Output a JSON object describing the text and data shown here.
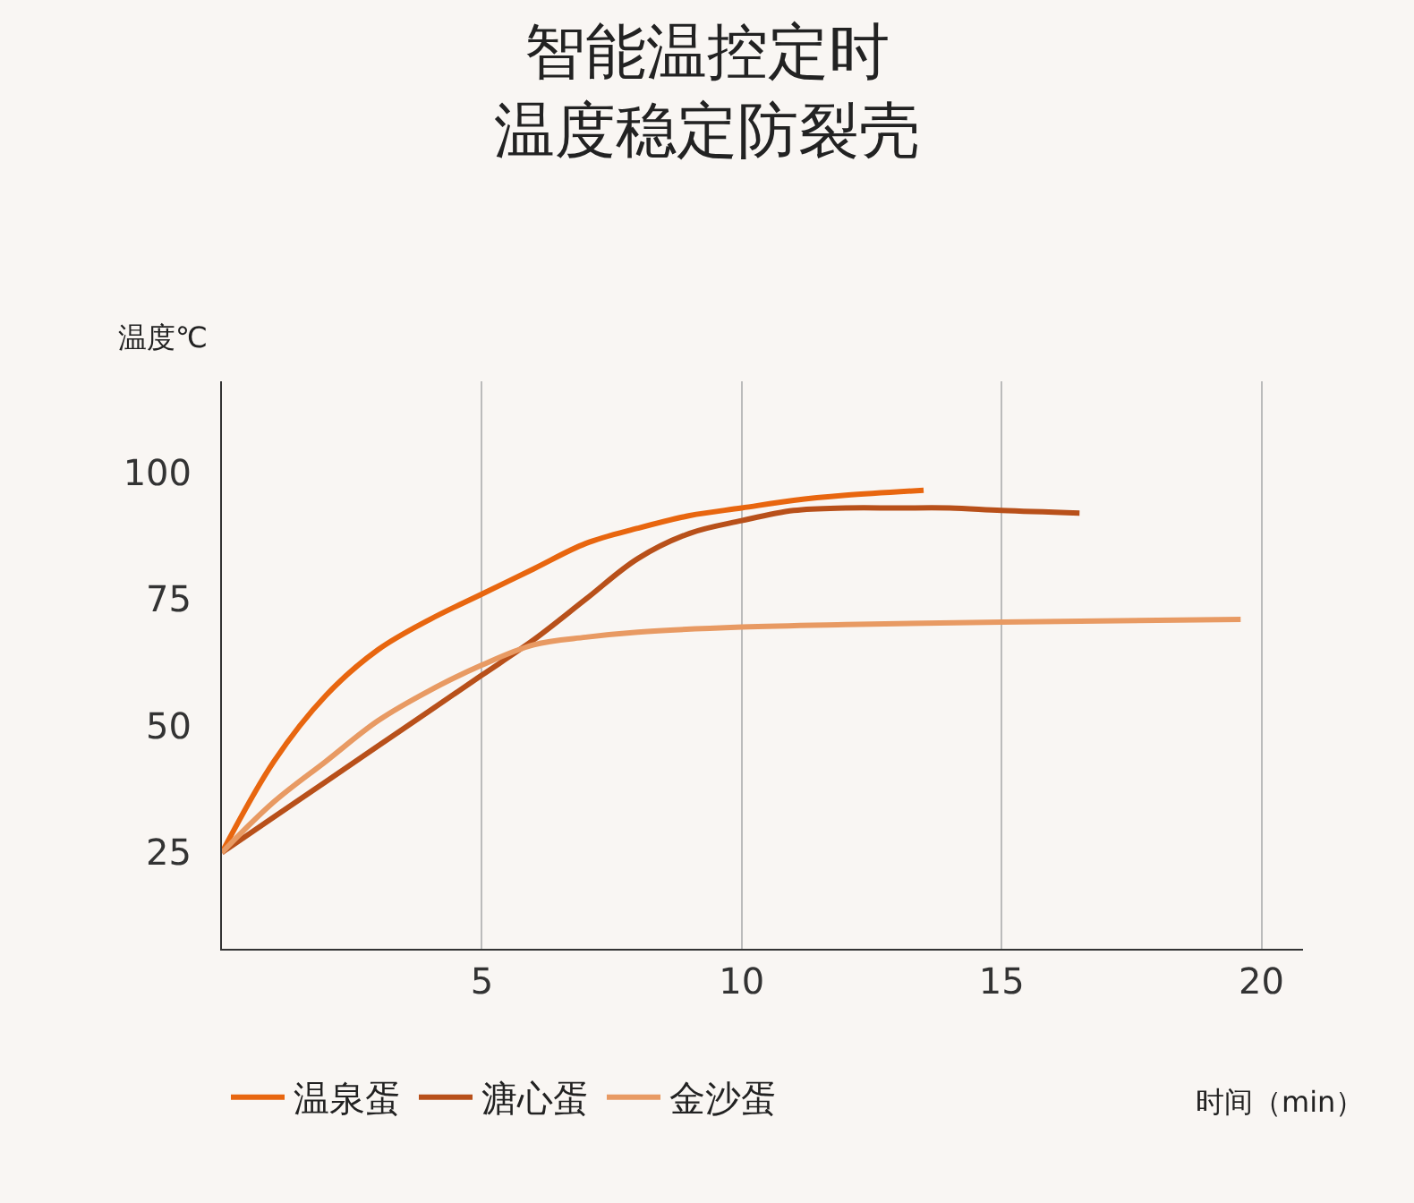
{
  "chart_data": {
    "type": "line",
    "title": "智能温控定时",
    "subtitle": "温度稳定防裂壳",
    "xlabel": "时间（min）",
    "ylabel": "温度℃",
    "xlim": [
      0,
      20.8
    ],
    "xticks": [
      5,
      10,
      15,
      20
    ],
    "ylim": [
      6,
      118
    ],
    "yticks": [
      25,
      50,
      75,
      100
    ],
    "grid": "x",
    "legend": "bottom",
    "marker": "none",
    "line_style": "solid",
    "series": [
      {
        "name": "温泉蛋",
        "color": "#e8660f",
        "x": [
          0,
          1,
          2,
          3,
          4,
          5,
          6,
          7,
          8,
          9,
          10,
          11,
          12,
          13.5
        ],
        "values": [
          25,
          43,
          56,
          65,
          71,
          76,
          81,
          86,
          89,
          91.5,
          93,
          94.5,
          95.5,
          96.5
        ]
      },
      {
        "name": "溏心蛋",
        "color": "#b8501a",
        "x": [
          0,
          1,
          2,
          3,
          4,
          5,
          6,
          7,
          8,
          9,
          10,
          11,
          12,
          13,
          14,
          15,
          16.5
        ],
        "values": [
          25,
          32,
          39,
          46,
          53,
          60,
          67,
          75,
          83,
          88,
          90.5,
          92.5,
          93,
          93,
          93,
          92.5,
          92
        ]
      },
      {
        "name": "金沙蛋",
        "color": "#e89a63",
        "x": [
          0,
          1,
          2,
          3,
          4,
          5,
          6,
          7,
          8,
          10,
          12,
          15,
          19.6
        ],
        "values": [
          25,
          35,
          43,
          51,
          57,
          62,
          66,
          67.5,
          68.5,
          69.5,
          70,
          70.5,
          71
        ]
      }
    ]
  }
}
